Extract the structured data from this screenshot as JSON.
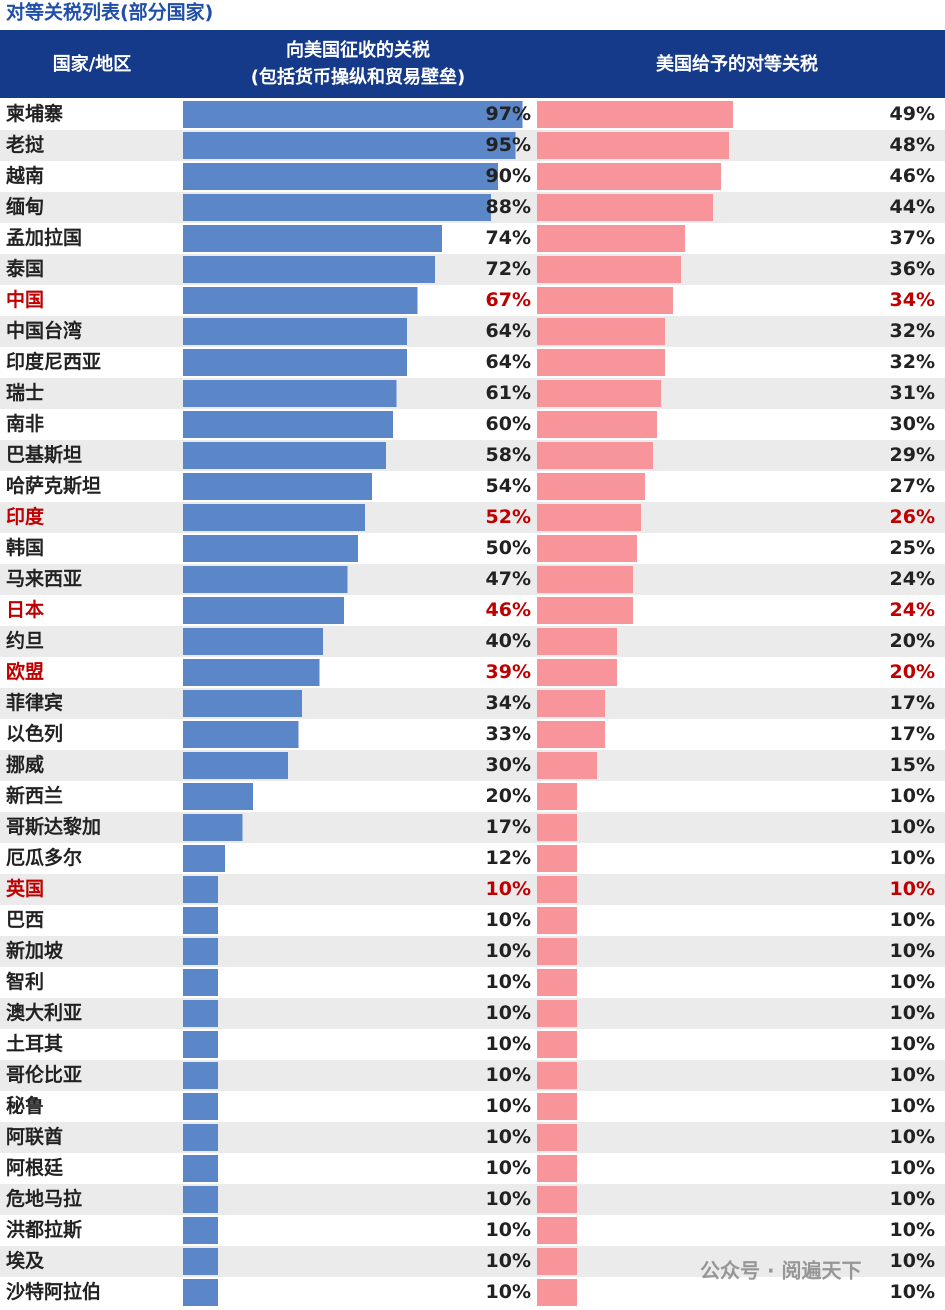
{
  "chart_data": {
    "type": "bar",
    "orientation": "horizontal",
    "title": "对等关税列表(部分国家)",
    "category_label": "国家/地区",
    "categories": [
      "柬埔寨",
      "老挝",
      "越南",
      "缅甸",
      "孟加拉国",
      "泰国",
      "中国",
      "中国台湾",
      "印度尼西亚",
      "瑞士",
      "南非",
      "巴基斯坦",
      "哈萨克斯坦",
      "印度",
      "韩国",
      "马来西亚",
      "日本",
      "约旦",
      "欧盟",
      "菲律宾",
      "以色列",
      "挪威",
      "新西兰",
      "哥斯达黎加",
      "厄瓜多尔",
      "英国",
      "巴西",
      "新加坡",
      "智利",
      "澳大利亚",
      "土耳其",
      "哥伦比亚",
      "秘鲁",
      "阿联酋",
      "阿根廷",
      "危地马拉",
      "洪都拉斯",
      "埃及",
      "沙特阿拉伯"
    ],
    "highlight": [
      false,
      false,
      false,
      false,
      false,
      false,
      true,
      false,
      false,
      false,
      false,
      false,
      false,
      true,
      false,
      false,
      true,
      false,
      true,
      false,
      false,
      false,
      false,
      false,
      false,
      true,
      false,
      false,
      false,
      false,
      false,
      false,
      false,
      false,
      false,
      false,
      false,
      false,
      false
    ],
    "highlight_color": "#c00000",
    "series": [
      {
        "name": "向美国征收的关税",
        "note": "(包括货币操纵和贸易壁垒)",
        "color": "#5b86c8",
        "xlim": [
          0,
          100
        ],
        "values": [
          97,
          95,
          90,
          88,
          74,
          72,
          67,
          64,
          64,
          61,
          60,
          58,
          54,
          52,
          50,
          47,
          46,
          40,
          39,
          34,
          33,
          30,
          20,
          17,
          12,
          10,
          10,
          10,
          10,
          10,
          10,
          10,
          10,
          10,
          10,
          10,
          10,
          10,
          10
        ],
        "value_labels": [
          "97%",
          "95%",
          "90%",
          "88%",
          "74%",
          "72%",
          "67%",
          "64%",
          "64%",
          "61%",
          "60%",
          "58%",
          "54%",
          "52%",
          "50%",
          "47%",
          "46%",
          "40%",
          "39%",
          "34%",
          "33%",
          "30%",
          "20%",
          "17%",
          "12%",
          "10%",
          "10%",
          "10%",
          "10%",
          "10%",
          "10%",
          "10%",
          "10%",
          "10%",
          "10%",
          "10%",
          "10%",
          "10%",
          "10%"
        ]
      },
      {
        "name": "美国给予的对等关税",
        "color": "#f7959a",
        "xlim": [
          0,
          100
        ],
        "values": [
          49,
          48,
          46,
          44,
          37,
          36,
          34,
          32,
          32,
          31,
          30,
          29,
          27,
          26,
          25,
          24,
          24,
          20,
          20,
          17,
          17,
          15,
          10,
          10,
          10,
          10,
          10,
          10,
          10,
          10,
          10,
          10,
          10,
          10,
          10,
          10,
          10,
          10,
          10
        ],
        "value_labels": [
          "49%",
          "48%",
          "46%",
          "44%",
          "37%",
          "36%",
          "34%",
          "32%",
          "32%",
          "31%",
          "30%",
          "29%",
          "27%",
          "26%",
          "25%",
          "24%",
          "24%",
          "20%",
          "20%",
          "17%",
          "17%",
          "15%",
          "10%",
          "10%",
          "10%",
          "10%",
          "10%",
          "10%",
          "10%",
          "10%",
          "10%",
          "10%",
          "10%",
          "10%",
          "10%",
          "10%",
          "10%",
          "10%",
          "10%"
        ]
      }
    ],
    "watermark": "公众号 · 阅遍天下"
  }
}
